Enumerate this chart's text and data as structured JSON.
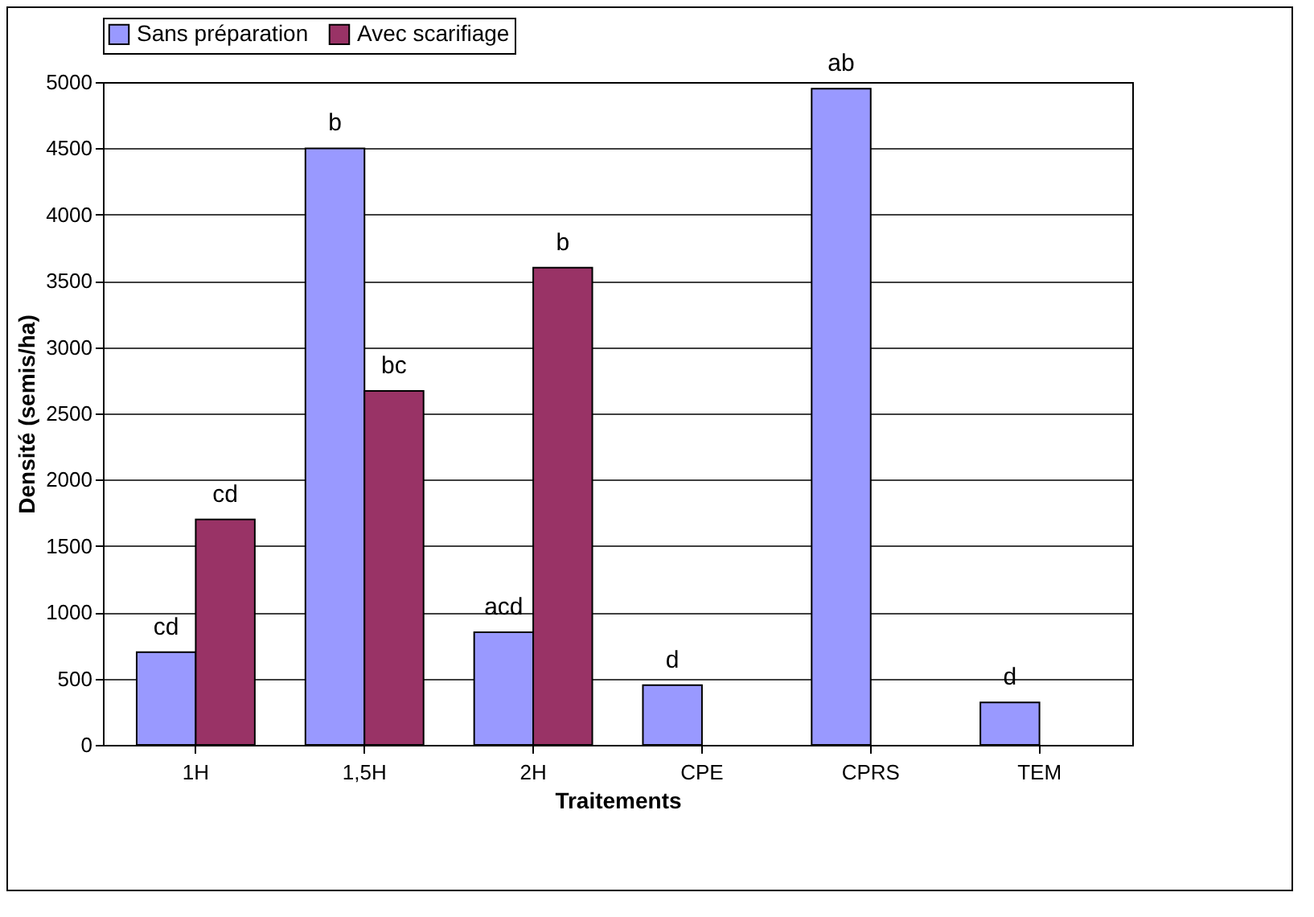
{
  "chart_data": {
    "type": "bar",
    "xlabel": "Traitements",
    "ylabel": "Densité (semis/ha)",
    "categories": [
      "1H",
      "1,5H",
      "2H",
      "CPE",
      "CPRS",
      "TEM"
    ],
    "series": [
      {
        "name": "Sans préparation",
        "color": "#9999ff",
        "values": [
          700,
          4500,
          850,
          450,
          4950,
          320
        ]
      },
      {
        "name": "Avec scarifiage",
        "color": "#993366",
        "values": [
          1700,
          2670,
          3600,
          null,
          null,
          null
        ]
      }
    ],
    "ylim": [
      0,
      5000
    ],
    "yticks": [
      0,
      500,
      1000,
      1500,
      2000,
      2500,
      3000,
      3500,
      4000,
      4500,
      5000
    ],
    "grid": "y",
    "legend": "top",
    "annotations": [
      {
        "text": "cd",
        "x": "1H",
        "y": 700
      },
      {
        "text": "cd",
        "x": "1H",
        "y": 1700
      },
      {
        "text": "b",
        "x": "1,5H",
        "y": 4500
      },
      {
        "text": "bc",
        "x": "1,5H",
        "y": 2670
      },
      {
        "text": "acd",
        "x": "2H",
        "y": 850
      },
      {
        "text": "b",
        "x": "2H",
        "y": 3600
      },
      {
        "text": "d",
        "x": "CPE",
        "y": 450
      },
      {
        "text": "ab",
        "x": "CPRS",
        "y": 4950
      },
      {
        "text": "d",
        "x": "TEM",
        "y": 320
      }
    ]
  }
}
